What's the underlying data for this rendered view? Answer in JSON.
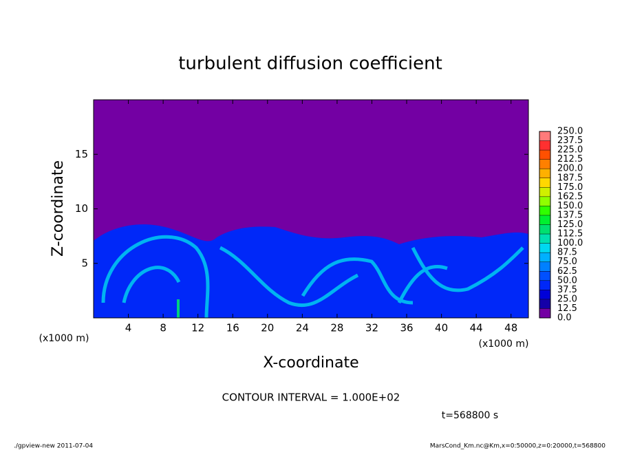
{
  "chart_data": {
    "type": "contour",
    "title": "turbulent diffusion coefficient",
    "xlabel": "X-coordinate",
    "ylabel": "Z-coordinate",
    "x_unit": "(x1000 m)",
    "y_unit": "(x1000 m)",
    "xlim": [
      0,
      50
    ],
    "xticks": [
      4,
      8,
      12,
      16,
      20,
      24,
      28,
      32,
      36,
      40,
      44,
      48
    ],
    "ylim": [
      0,
      20
    ],
    "yticks": [
      5,
      10,
      15
    ],
    "levels": [
      {
        "value": 0,
        "label": "0.0"
      },
      12.5,
      {
        "value": 25,
        "label": "25.0"
      },
      37.5,
      {
        "value": 50,
        "label": "50.0"
      },
      62.5,
      {
        "value": 75,
        "label": "75.0"
      },
      87.5,
      {
        "value": 100,
        "label": "100.0"
      },
      112.5,
      {
        "value": 125,
        "label": "125.0"
      },
      137.5,
      {
        "value": 150,
        "label": "150.0"
      },
      162.5,
      {
        "value": 175,
        "label": "175.0"
      },
      187.5,
      {
        "value": 200,
        "label": "200.0"
      },
      212.5,
      {
        "value": 225,
        "label": "225.0"
      },
      237.5,
      {
        "value": 250,
        "label": "250.0"
      }
    ],
    "colors": [
      "#7300a3",
      "#1400a8",
      "#0000d8",
      "#0028f8",
      "#0050ff",
      "#0080ff",
      "#00b0ff",
      "#00d8f0",
      "#00e0b0",
      "#00e070",
      "#00f030",
      "#30ff00",
      "#90ff00",
      "#d0f000",
      "#ffd800",
      "#ffb000",
      "#ff8000",
      "#ff5000",
      "#ff3030",
      "#ff7a7a"
    ],
    "contour_interval": "CONTOUR INTERVAL = 1.000E+02",
    "time_label": "t=568800 s",
    "footer_left": "./gpview-new   2011-07-04",
    "footer_right": "MarsCond_Km.nc@Km,x=0:50000,z=0:20000,t=568800"
  }
}
